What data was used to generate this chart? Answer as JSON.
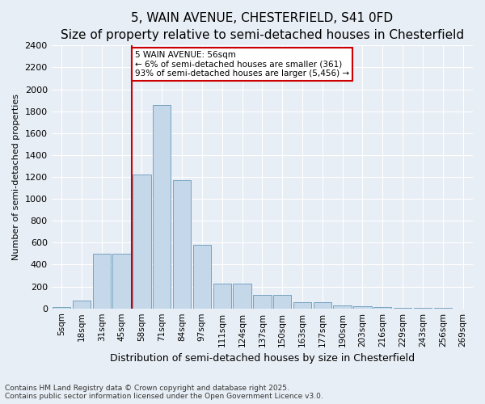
{
  "title": "5, WAIN AVENUE, CHESTERFIELD, S41 0FD",
  "subtitle": "Size of property relative to semi-detached houses in Chesterfield",
  "xlabel": "Distribution of semi-detached houses by size in Chesterfield",
  "ylabel": "Number of semi-detached properties",
  "categories": [
    "5sqm",
    "18sqm",
    "31sqm",
    "45sqm",
    "58sqm",
    "71sqm",
    "84sqm",
    "97sqm",
    "111sqm",
    "124sqm",
    "137sqm",
    "150sqm",
    "163sqm",
    "177sqm",
    "190sqm",
    "203sqm",
    "216sqm",
    "229sqm",
    "243sqm",
    "256sqm",
    "269sqm"
  ],
  "values": [
    15,
    70,
    500,
    500,
    1220,
    1860,
    1170,
    580,
    230,
    230,
    120,
    120,
    55,
    55,
    30,
    20,
    10,
    5,
    3,
    2,
    1
  ],
  "bar_color": "#c5d8ea",
  "bar_edge_color": "#6699bb",
  "vline_color": "#cc0000",
  "vline_pos": 4.0,
  "annotation_text": "5 WAIN AVENUE: 56sqm\n← 6% of semi-detached houses are smaller (361)\n93% of semi-detached houses are larger (5,456) →",
  "annotation_box_color": "#ffffff",
  "annotation_box_edge_color": "#cc0000",
  "ylim": [
    0,
    2400
  ],
  "footer": "Contains HM Land Registry data © Crown copyright and database right 2025.\nContains public sector information licensed under the Open Government Licence v3.0.",
  "bg_color": "#e8eef5",
  "plot_bg_color": "#e8eef5",
  "grid_color": "#ffffff",
  "title_fontsize": 11,
  "subtitle_fontsize": 9
}
